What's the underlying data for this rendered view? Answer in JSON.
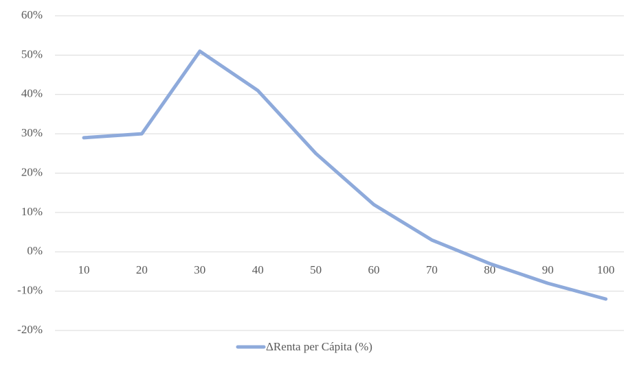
{
  "chart_data": {
    "type": "line",
    "categories": [
      "10",
      "20",
      "30",
      "40",
      "50",
      "60",
      "70",
      "80",
      "90",
      "100"
    ],
    "series": [
      {
        "name": "ΔRenta per Cápita (%)",
        "color": "#8eaadb",
        "values": [
          29,
          30,
          51,
          41,
          25,
          12,
          3,
          -3,
          -8,
          -12
        ]
      }
    ],
    "ylim": [
      -20,
      60
    ],
    "yticks": [
      {
        "value": -20,
        "label": "-20%"
      },
      {
        "value": -10,
        "label": "-10%"
      },
      {
        "value": 0,
        "label": "0%"
      },
      {
        "value": 10,
        "label": "10%"
      },
      {
        "value": 20,
        "label": "20%"
      },
      {
        "value": 30,
        "label": "30%"
      },
      {
        "value": 40,
        "label": "40%"
      },
      {
        "value": 50,
        "label": "50%"
      },
      {
        "value": 60,
        "label": "60%"
      }
    ],
    "grid": true,
    "legend": "bottom"
  }
}
